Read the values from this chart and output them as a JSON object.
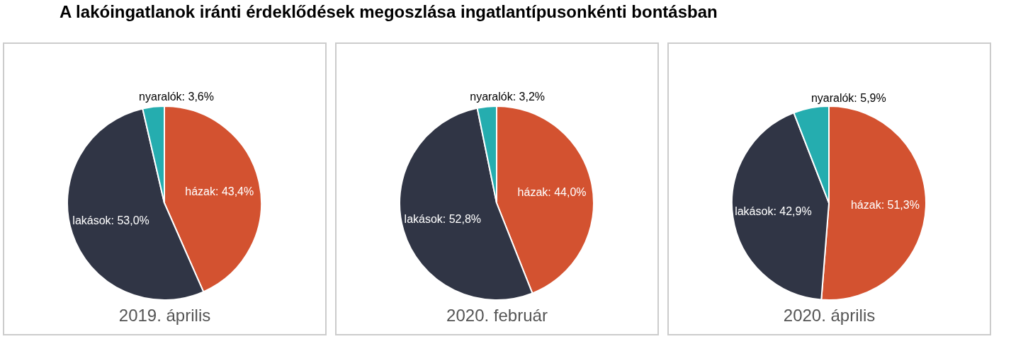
{
  "chart_data": [
    {
      "type": "pie",
      "title": "2019. április",
      "annotations": [
        "A lakóingatlanok iránti érdeklődések megoszlása ingatlantípusonkénti bontásban"
      ],
      "categories": [
        "házak",
        "lakások",
        "nyaralók"
      ],
      "values": [
        43.4,
        53.0,
        3.6
      ],
      "colors": [
        "#d35230",
        "#303545",
        "#25adaf"
      ],
      "value_labels": [
        "43,4%",
        "53,0%",
        "3,6%"
      ]
    },
    {
      "type": "pie",
      "title": "2020. február",
      "categories": [
        "házak",
        "lakások",
        "nyaralók"
      ],
      "values": [
        44.0,
        52.8,
        3.2
      ],
      "colors": [
        "#d35230",
        "#303545",
        "#25adaf"
      ],
      "value_labels": [
        "44,0%",
        "52,8%",
        "3,2%"
      ]
    },
    {
      "type": "pie",
      "title": "2020. április",
      "categories": [
        "házak",
        "lakások",
        "nyaralók"
      ],
      "values": [
        51.3,
        42.9,
        5.9
      ],
      "colors": [
        "#d35230",
        "#303545",
        "#25adaf"
      ],
      "value_labels": [
        "51,3%",
        "42,9%",
        "5,9%"
      ]
    }
  ]
}
